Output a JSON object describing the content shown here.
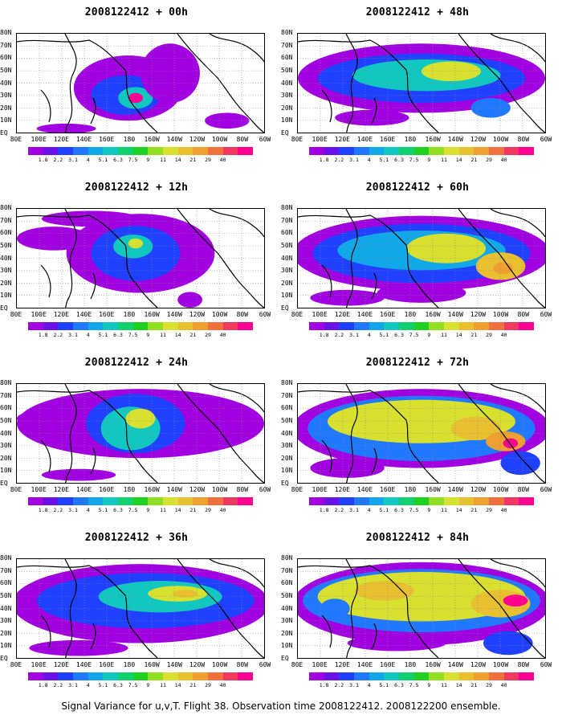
{
  "footer": "Signal Variance for u,v,T. Flight 38. Observation time 2008122412. 2008122200 ensemble.",
  "lat_labels": [
    "80N",
    "70N",
    "60N",
    "50N",
    "40N",
    "30N",
    "20N",
    "10N",
    "EQ"
  ],
  "lon_labels": [
    "80E",
    "100E",
    "120E",
    "140E",
    "160E",
    "180",
    "160W",
    "140W",
    "120W",
    "100W",
    "80W",
    "60W"
  ],
  "colorbar": {
    "labels": [
      "1.8",
      "2.2",
      "3.1",
      "4",
      "5.1",
      "6.3",
      "7.5",
      "9",
      "11",
      "14",
      "21",
      "29",
      "40"
    ],
    "colors": [
      "#a100e0",
      "#6a10e8",
      "#2040ff",
      "#2078ff",
      "#10a8e8",
      "#10c8c0",
      "#10d070",
      "#20d020",
      "#90e020",
      "#d8e030",
      "#e8c030",
      "#f0a030",
      "#f07040",
      "#f03860",
      "#ff0090"
    ]
  },
  "panels": [
    {
      "title": "2008122412 + 00h"
    },
    {
      "title": "2008122412 + 48h"
    },
    {
      "title": "2008122412 + 12h"
    },
    {
      "title": "2008122412 + 60h"
    },
    {
      "title": "2008122412 + 24h"
    },
    {
      "title": "2008122412 + 72h"
    },
    {
      "title": "2008122412 + 36h"
    },
    {
      "title": "2008122412 + 84h"
    }
  ]
}
